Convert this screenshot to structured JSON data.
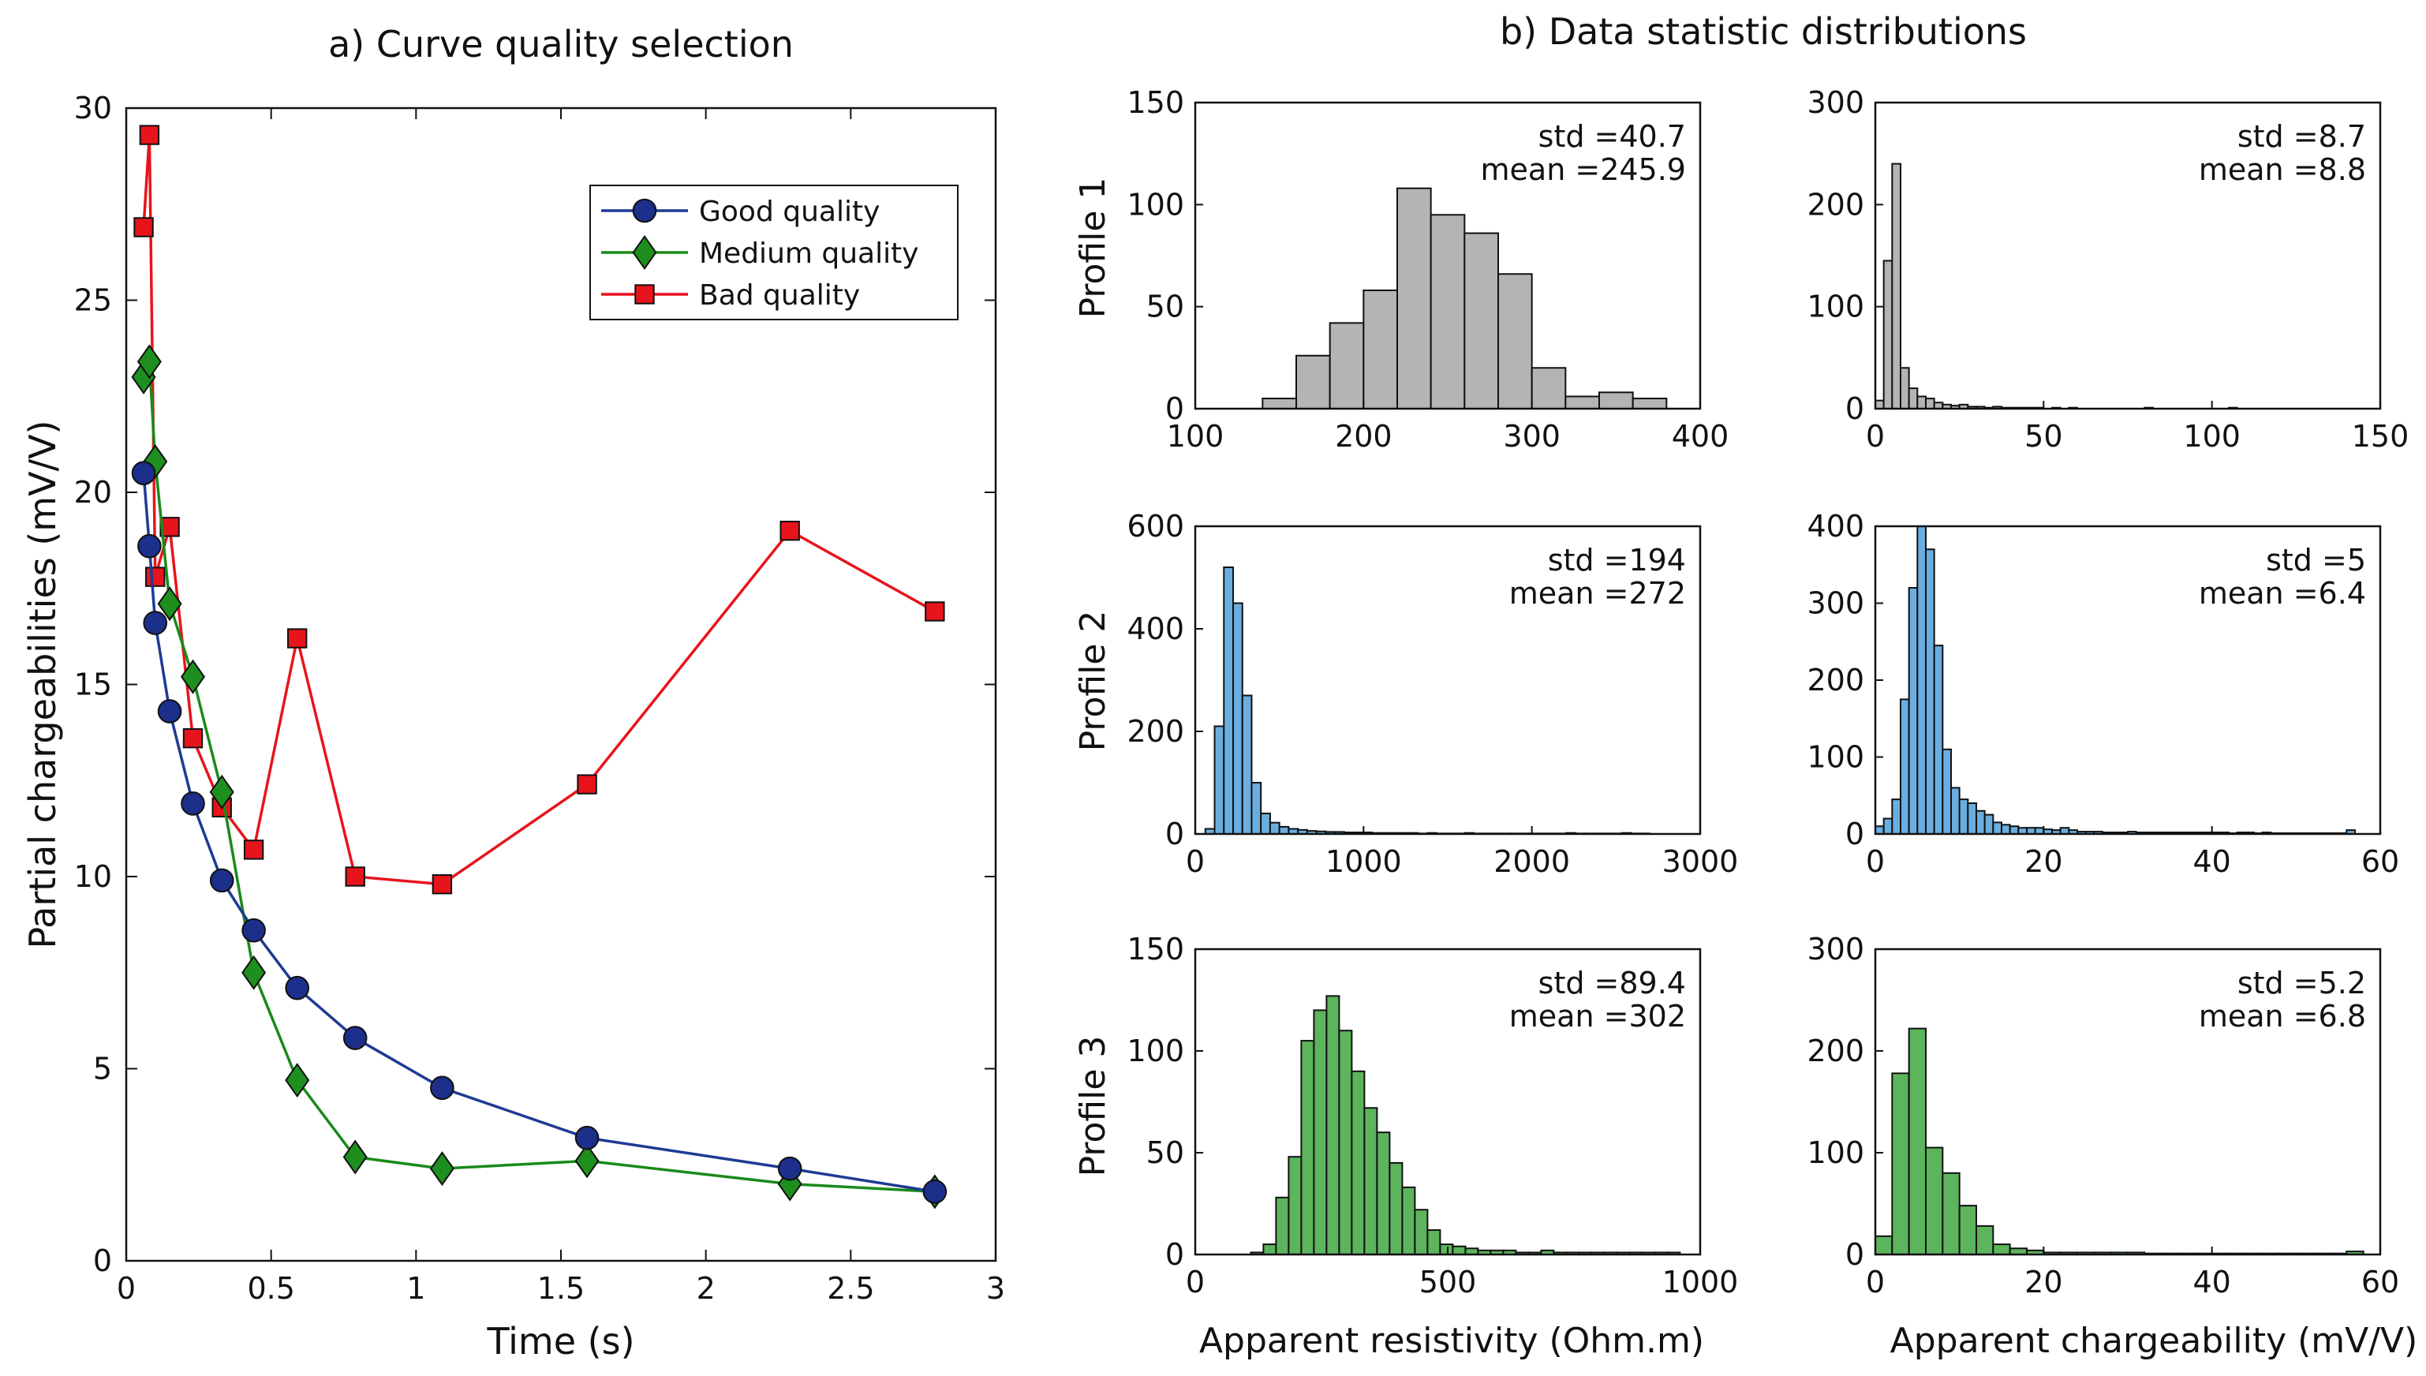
{
  "chart_data": [
    {
      "id": "left",
      "type": "line",
      "title": "a) Curve quality selection",
      "xlabel": "Time (s)",
      "ylabel": "Partial chargeabilities (mV/V)",
      "xlim": [
        0,
        3
      ],
      "ylim": [
        0,
        30
      ],
      "xticks": [
        0,
        0.5,
        1,
        1.5,
        2,
        2.5,
        3
      ],
      "xtick_labels": [
        "0",
        "0.5",
        "1",
        "1.5",
        "2",
        "2.5",
        "3"
      ],
      "yticks": [
        0,
        5,
        10,
        15,
        20,
        25,
        30
      ],
      "ytick_labels": [
        "0",
        "5",
        "10",
        "15",
        "20",
        "25",
        "30"
      ],
      "legend_position": "top-right",
      "series": [
        {
          "name": "Good quality",
          "color": "#1f3a93",
          "marker_fill": "#1c2f8a",
          "marker": "circle",
          "x": [
            0.06,
            0.08,
            0.1,
            0.15,
            0.23,
            0.33,
            0.44,
            0.59,
            0.79,
            1.09,
            1.59,
            2.29,
            2.79
          ],
          "y": [
            20.5,
            18.6,
            16.6,
            14.3,
            11.9,
            9.9,
            8.6,
            7.1,
            5.8,
            4.5,
            3.2,
            2.4,
            1.8
          ]
        },
        {
          "name": "Medium quality",
          "color": "#1a8a1a",
          "marker_fill": "#1e8e1e",
          "marker": "diamond",
          "x": [
            0.06,
            0.08,
            0.1,
            0.15,
            0.23,
            0.33,
            0.44,
            0.59,
            0.79,
            1.09,
            1.59,
            2.29,
            2.79
          ],
          "y": [
            23.0,
            23.4,
            20.8,
            17.1,
            15.2,
            12.2,
            7.5,
            4.7,
            2.7,
            2.4,
            2.6,
            2.0,
            1.8
          ]
        },
        {
          "name": "Bad quality",
          "color": "#e8141c",
          "marker_fill": "#e8141c",
          "marker": "square",
          "x": [
            0.06,
            0.08,
            0.1,
            0.15,
            0.23,
            0.33,
            0.44,
            0.59,
            0.79,
            1.09,
            1.59,
            2.29,
            2.79
          ],
          "y": [
            26.9,
            29.3,
            17.8,
            19.1,
            13.6,
            11.8,
            10.7,
            16.2,
            10.0,
            9.8,
            12.4,
            19.0,
            16.9
          ]
        }
      ]
    },
    {
      "id": "h11",
      "type": "bar",
      "row": 1,
      "col": 1,
      "color": "#b4b4b4",
      "xlim": [
        100,
        400
      ],
      "ylim": [
        0,
        150
      ],
      "xticks": [
        100,
        200,
        300,
        400
      ],
      "xtick_labels": [
        "100",
        "200",
        "300",
        "400"
      ],
      "yticks": [
        0,
        50,
        100,
        150
      ],
      "ytick_labels": [
        "0",
        "50",
        "100",
        "150"
      ],
      "bin_start": 120,
      "bin_width": 20,
      "values": [
        0,
        5,
        26,
        42,
        58,
        108,
        95,
        86,
        66,
        20,
        6,
        8,
        5
      ],
      "std_label": "std =40.7",
      "mean_label": "mean =245.9"
    },
    {
      "id": "h12",
      "type": "bar",
      "row": 1,
      "col": 2,
      "color": "#b4b4b4",
      "xlim": [
        0,
        150
      ],
      "ylim": [
        0,
        300
      ],
      "xticks": [
        0,
        50,
        100,
        150
      ],
      "xtick_labels": [
        "0",
        "50",
        "100",
        "150"
      ],
      "yticks": [
        0,
        100,
        200,
        300
      ],
      "ytick_labels": [
        "0",
        "100",
        "200",
        "300"
      ],
      "bin_start": 0,
      "bin_width": 2.5,
      "values": [
        8,
        145,
        240,
        40,
        20,
        12,
        10,
        6,
        4,
        3,
        4,
        2,
        2,
        1,
        2,
        1,
        1,
        1,
        1,
        1,
        0,
        1,
        0,
        1,
        0,
        0,
        0,
        0,
        0,
        0,
        0,
        0,
        1,
        0,
        0,
        0,
        0,
        0,
        0,
        0,
        0,
        0,
        1
      ],
      "std_label": "std =8.7",
      "mean_label": "mean =8.8"
    },
    {
      "id": "h21",
      "type": "bar",
      "row": 2,
      "col": 1,
      "color": "#6aaee0",
      "xlim": [
        0,
        3000
      ],
      "ylim": [
        0,
        600
      ],
      "xticks": [
        0,
        1000,
        2000,
        3000
      ],
      "xtick_labels": [
        "0",
        "1000",
        "2000",
        "3000"
      ],
      "yticks": [
        0,
        200,
        400,
        600
      ],
      "ytick_labels": [
        "0",
        "200",
        "400",
        "600"
      ],
      "bin_start": 60,
      "bin_width": 55,
      "values": [
        10,
        210,
        520,
        450,
        270,
        100,
        40,
        22,
        14,
        10,
        8,
        6,
        5,
        4,
        4,
        3,
        3,
        3,
        2,
        2,
        2,
        2,
        2,
        1,
        2,
        1,
        1,
        1,
        2,
        1,
        1,
        1,
        1,
        1,
        1,
        1,
        1,
        1,
        1,
        2,
        1,
        1,
        1,
        1,
        1,
        2,
        1,
        1
      ],
      "std_label": "std =194",
      "mean_label": "mean =272"
    },
    {
      "id": "h22",
      "type": "bar",
      "row": 2,
      "col": 2,
      "color": "#6aaee0",
      "xlim": [
        0,
        60
      ],
      "ylim": [
        0,
        400
      ],
      "xticks": [
        0,
        20,
        40,
        60
      ],
      "xtick_labels": [
        "0",
        "20",
        "40",
        "60"
      ],
      "yticks": [
        0,
        100,
        200,
        300,
        400
      ],
      "ytick_labels": [
        "0",
        "100",
        "200",
        "300",
        "400"
      ],
      "bin_start": 0,
      "bin_width": 1,
      "values": [
        10,
        20,
        45,
        175,
        320,
        410,
        370,
        245,
        110,
        60,
        45,
        40,
        30,
        25,
        15,
        12,
        10,
        8,
        8,
        8,
        6,
        5,
        8,
        5,
        3,
        3,
        3,
        2,
        2,
        2,
        3,
        2,
        2,
        2,
        2,
        2,
        2,
        2,
        2,
        2,
        2,
        2,
        1,
        2,
        2,
        1,
        2,
        1,
        1,
        1,
        1,
        1,
        1,
        1,
        1,
        1,
        5
      ],
      "std_label": "std =5",
      "mean_label": "mean =6.4"
    },
    {
      "id": "h31",
      "type": "bar",
      "row": 3,
      "col": 1,
      "color": "#5cb45c",
      "xlim": [
        0,
        1000
      ],
      "ylim": [
        0,
        150
      ],
      "xticks": [
        0,
        500,
        1000
      ],
      "xtick_labels": [
        "0",
        "500",
        "1000"
      ],
      "yticks": [
        0,
        50,
        100,
        150
      ],
      "ytick_labels": [
        "0",
        "50",
        "100",
        "150"
      ],
      "bin_start": 110,
      "bin_width": 25,
      "values": [
        1,
        5,
        28,
        48,
        105,
        120,
        127,
        110,
        90,
        72,
        60,
        45,
        33,
        22,
        12,
        5,
        4,
        3,
        2,
        2,
        2,
        1,
        1,
        2,
        1,
        1,
        1,
        1,
        1,
        1,
        1,
        1,
        1,
        1
      ],
      "std_label": "std =89.4",
      "mean_label": "mean =302"
    },
    {
      "id": "h32",
      "type": "bar",
      "row": 3,
      "col": 2,
      "color": "#5cb45c",
      "xlim": [
        0,
        60
      ],
      "ylim": [
        0,
        300
      ],
      "xticks": [
        0,
        20,
        40,
        60
      ],
      "xtick_labels": [
        "0",
        "20",
        "40",
        "60"
      ],
      "yticks": [
        0,
        100,
        200,
        300
      ],
      "ytick_labels": [
        "0",
        "100",
        "200",
        "300"
      ],
      "bin_start": 0,
      "bin_width": 2,
      "values": [
        18,
        178,
        222,
        105,
        80,
        48,
        28,
        10,
        6,
        4,
        2,
        2,
        2,
        2,
        2,
        2,
        1,
        1,
        1,
        1,
        1,
        1,
        1,
        1,
        1,
        1,
        1,
        1,
        3
      ],
      "std_label": "std =5.2",
      "mean_label": "mean =6.8"
    }
  ],
  "right_title": "b) Data statistic distributions",
  "row_labels": [
    "Profile 1",
    "Profile 2",
    "Profile 3"
  ],
  "col_xlabels": [
    "Apparent resistivity (Ohm.m)",
    "Apparent chargeability (mV/V)"
  ]
}
